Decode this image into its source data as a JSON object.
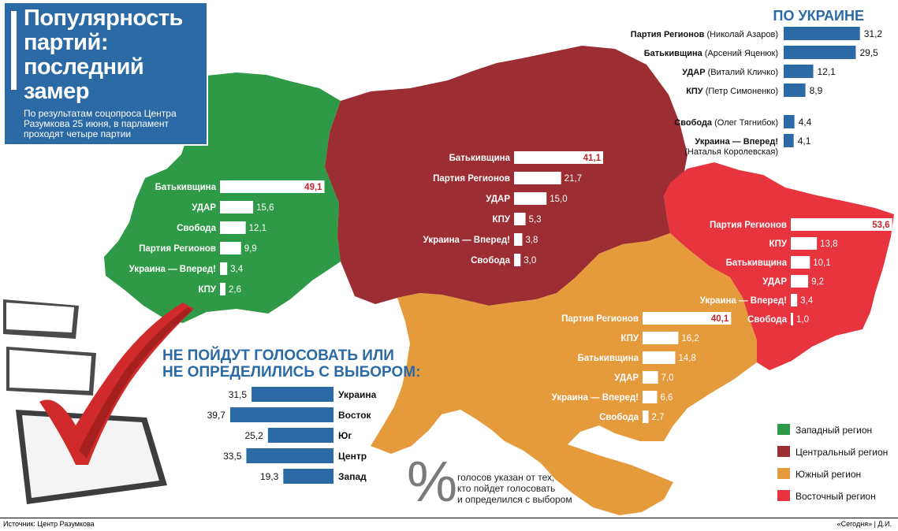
{
  "title": "Популярность партий: последний замер",
  "title_lines": [
    "Популярность",
    "партий:",
    "последний",
    "замер"
  ],
  "subtitle": "По результатам соцопроса Центра Разумкова 25 июня, в парламент проходят четыре партии",
  "subtitle_lines": [
    "По результатам соцопроса Центра",
    "Разумкова 25 июня, в парламент",
    "проходят четыре партии"
  ],
  "source": "Источник: Центр Разумкова",
  "credit": "«Сегодня» | Д.И.",
  "percent_note": "голосов указан от тех, кто пойдет голосовать и определился с выбором",
  "percent_note_lines": [
    "голосов указан от тех,",
    "кто пойдет голосовать",
    "и определился с выбором"
  ],
  "percent_sign": "%",
  "colors": {
    "west": "#2e9a47",
    "center": "#9b2d33",
    "south": "#e59a3c",
    "east": "#e8343f",
    "national_bar": "#2b6aa4",
    "title_bg": "#2b6aa4",
    "highlight_value": "#c1272d"
  },
  "legend": [
    {
      "label": "Западный регион",
      "color": "#2e9a47"
    },
    {
      "label": "Центральный регион",
      "color": "#9b2d33"
    },
    {
      "label": "Южный регион",
      "color": "#e59a3c"
    },
    {
      "label": "Восточный регион",
      "color": "#e8343f"
    }
  ],
  "chart_data": [
    {
      "type": "bar",
      "title": "ПО УКРАИНЕ",
      "categories": [
        "Партия Регионов",
        "Батькивщина",
        "УДАР",
        "КПУ",
        "Свобода",
        "Украина — Вперед!"
      ],
      "leaders": [
        "Николай Азаров",
        "Арсений Яценюк",
        "Виталий Кличко",
        "Петр Симоненко",
        "Олег Тягнибок",
        "Наталья Королевская"
      ],
      "values": [
        31.2,
        29.5,
        12.1,
        8.9,
        4.4,
        4.1
      ],
      "value_labels": [
        "31,2",
        "29,5",
        "12,1",
        "8,9",
        "4,4",
        "4,1"
      ]
    },
    {
      "type": "bar",
      "region": "Западный регион",
      "categories": [
        "Батькивщина",
        "УДАР",
        "Свобода",
        "Партия Регионов",
        "Украина — Вперед!",
        "КПУ"
      ],
      "values": [
        49.1,
        15.6,
        12.1,
        9.9,
        3.4,
        2.6
      ],
      "value_labels": [
        "49,1",
        "15,6",
        "12,1",
        "9,9",
        "3,4",
        "2,6"
      ]
    },
    {
      "type": "bar",
      "region": "Центральный регион",
      "categories": [
        "Батькивщина",
        "Партия Регионов",
        "УДАР",
        "КПУ",
        "Украина — Вперед!",
        "Свобода"
      ],
      "values": [
        41.1,
        21.7,
        15.0,
        5.3,
        3.8,
        3.0
      ],
      "value_labels": [
        "41,1",
        "21,7",
        "15,0",
        "5,3",
        "3,8",
        "3,0"
      ]
    },
    {
      "type": "bar",
      "region": "Восточный регион",
      "categories": [
        "Партия Регионов",
        "КПУ",
        "Батькивщина",
        "УДАР",
        "Украина — Вперед!",
        "Свобода"
      ],
      "values": [
        53.6,
        13.8,
        10.1,
        9.2,
        3.4,
        1.0
      ],
      "value_labels": [
        "53,6",
        "13,8",
        "10,1",
        "9,2",
        "3,4",
        "1,0"
      ]
    },
    {
      "type": "bar",
      "region": "Южный регион",
      "categories": [
        "Партия Регионов",
        "КПУ",
        "Батькивщина",
        "УДАР",
        "Украина — Вперед!",
        "Свобода"
      ],
      "values": [
        40.1,
        16.2,
        14.8,
        7.0,
        6.6,
        2.7
      ],
      "value_labels": [
        "40,1",
        "16,2",
        "14,8",
        "7,0",
        "6,6",
        "2,7"
      ]
    },
    {
      "type": "bar",
      "title": "НЕ ПОЙДУТ ГОЛОСОВАТЬ ИЛИ НЕ ОПРЕДЕЛИЛИСЬ С ВЫБОРОМ:",
      "title_lines": [
        "НЕ ПОЙДУТ ГОЛОСОВАТЬ ИЛИ",
        "НЕ ОПРЕДЕЛИЛИСЬ С ВЫБОРОМ:"
      ],
      "categories": [
        "Украина",
        "Восток",
        "Юг",
        "Центр",
        "Запад"
      ],
      "values": [
        31.5,
        39.7,
        25.2,
        33.5,
        19.3
      ],
      "value_labels": [
        "31,5",
        "39,7",
        "25,2",
        "33,5",
        "19,3"
      ]
    }
  ]
}
